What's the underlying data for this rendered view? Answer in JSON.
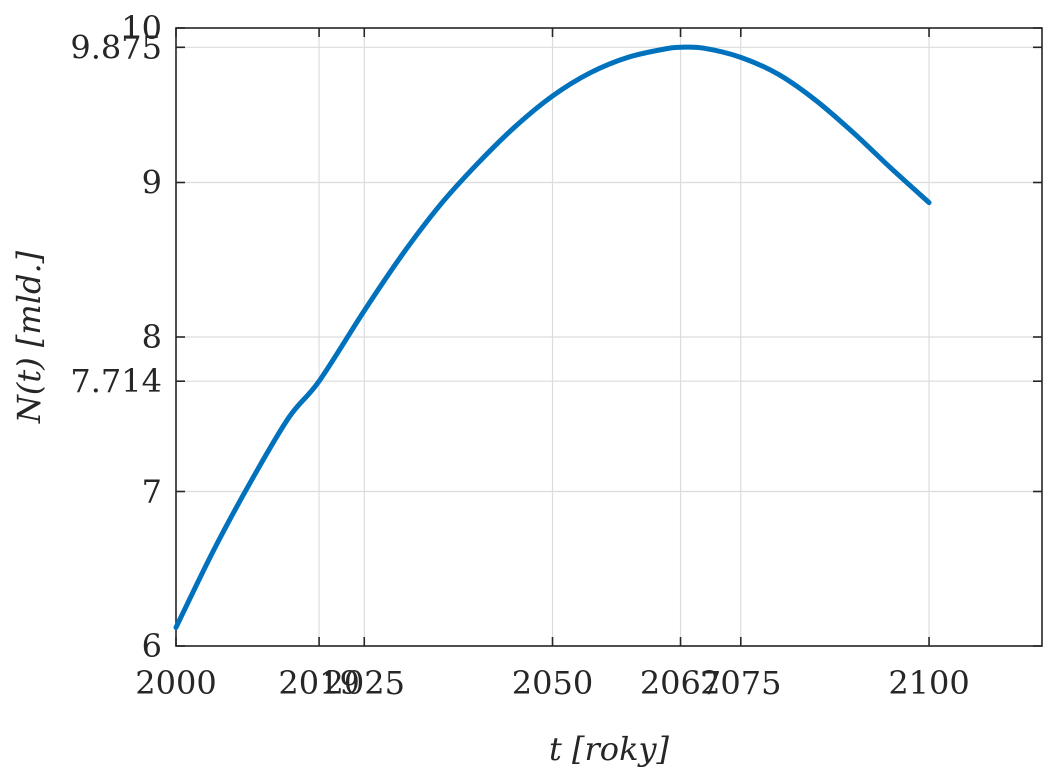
{
  "chart_data": {
    "type": "line",
    "title": "",
    "xlabel": "t [roky]",
    "ylabel": "N(t) [mld.]",
    "xlim": [
      2000,
      2115
    ],
    "ylim": [
      6,
      10
    ],
    "grid": true,
    "x_ticks": [
      2000,
      2019,
      2025,
      2050,
      2067,
      2075,
      2100
    ],
    "y_ticks": [
      6,
      7,
      7.714,
      8,
      9,
      9.875,
      10
    ],
    "x_tick_labels": [
      "2000",
      "2019",
      "2025",
      "2050",
      "2067",
      "2075",
      "2100"
    ],
    "y_tick_labels": [
      "6",
      "7",
      "7.714",
      "8",
      "9",
      "9.875",
      "10"
    ],
    "series": [
      {
        "color": "#0072bd",
        "x": [
          2000,
          2005,
          2010,
          2015,
          2019,
          2025,
          2030,
          2035,
          2040,
          2045,
          2050,
          2055,
          2060,
          2065,
          2067,
          2070,
          2075,
          2080,
          2085,
          2090,
          2095,
          2100
        ],
        "y": [
          6.12,
          6.62,
          7.07,
          7.48,
          7.714,
          8.17,
          8.53,
          8.85,
          9.12,
          9.36,
          9.56,
          9.71,
          9.81,
          9.865,
          9.875,
          9.87,
          9.81,
          9.7,
          9.53,
          9.32,
          9.09,
          8.87
        ]
      }
    ]
  }
}
